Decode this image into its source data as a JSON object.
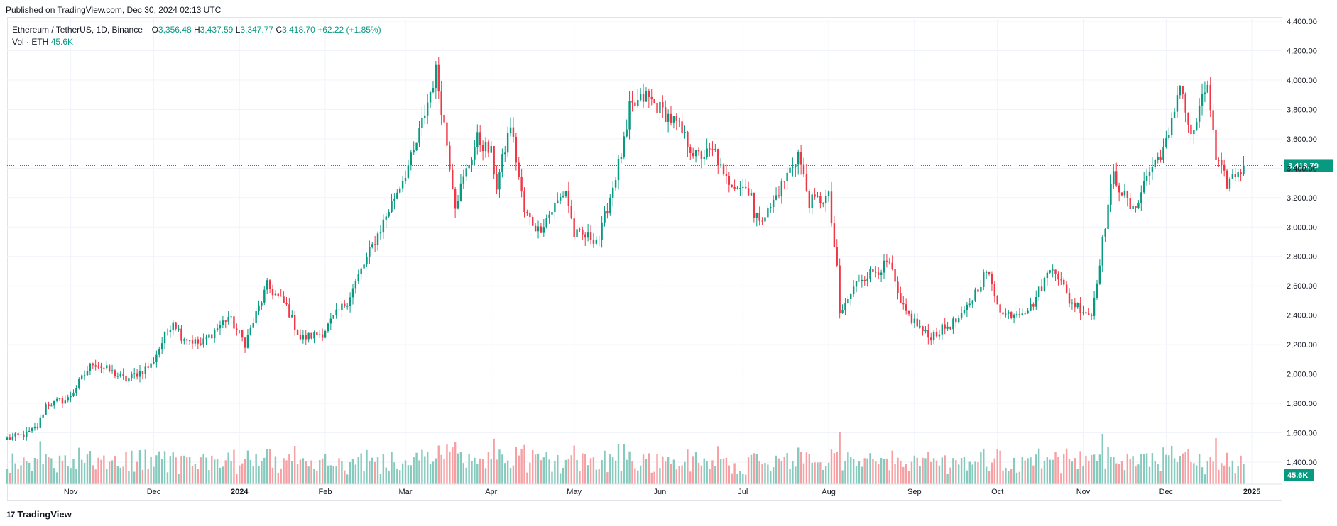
{
  "published": "Published on TradingView.com, Dec 30, 2024 02:13 UTC",
  "legend": {
    "symbol": "Ethereum / TetherUS, 1D, Binance",
    "open_key": "O",
    "open": "3,356.48",
    "high_key": "H",
    "high": "3,437.59",
    "low_key": "L",
    "low": "3,347.77",
    "close_key": "C",
    "close": "3,418.70",
    "change": "+62.22 (+1.85%)",
    "vol_label": "Vol · ETH",
    "vol_value": "45.6K"
  },
  "last_price_label": "3,418.70",
  "vol_badge": "45.6K",
  "logo": {
    "mark": "17",
    "text": "TradingView"
  },
  "colors": {
    "up": "#089981",
    "down": "#f23645",
    "vol_up": "#86cabd",
    "vol_down": "#f7a0a4",
    "grid": "#f0f3fa",
    "text": "#131722"
  },
  "chart_data": {
    "type": "candlestick",
    "y_axis_ticks": [
      "4,400.00",
      "4,200.00",
      "4,000.00",
      "3,800.00",
      "3,600.00",
      "3,400.00",
      "3,200.00",
      "3,000.00",
      "2,800.00",
      "2,600.00",
      "2,400.00",
      "2,200.00",
      "2,000.00",
      "1,800.00",
      "1,600.00",
      "1,400.00"
    ],
    "ylim": [
      1300,
      4450
    ],
    "x_axis_ticks": [
      "Nov",
      "Dec",
      "2024",
      "Feb",
      "Mar",
      "Apr",
      "May",
      "Jun",
      "Jul",
      "Aug",
      "Sep",
      "Oct",
      "Nov",
      "Dec",
      "2025"
    ],
    "x_tick_dates": [
      "2023-11-01",
      "2023-12-01",
      "2024-01-01",
      "2024-02-01",
      "2024-03-01",
      "2024-04-01",
      "2024-05-01",
      "2024-06-01",
      "2024-07-01",
      "2024-08-01",
      "2024-09-01",
      "2024-10-01",
      "2024-11-01",
      "2024-12-01",
      "2025-01-01"
    ],
    "x_range": [
      "2023-10-09",
      "2025-01-12"
    ],
    "last_price": 3418.7,
    "close_anchors": [
      [
        "2023-10-09",
        1560
      ],
      [
        "2023-10-16",
        1590
      ],
      [
        "2023-10-20",
        1640
      ],
      [
        "2023-10-23",
        1790
      ],
      [
        "2023-10-31",
        1830
      ],
      [
        "2023-11-09",
        2080
      ],
      [
        "2023-11-21",
        1960
      ],
      [
        "2023-11-30",
        2060
      ],
      [
        "2023-12-08",
        2370
      ],
      [
        "2023-12-11",
        2260
      ],
      [
        "2023-12-18",
        2200
      ],
      [
        "2023-12-28",
        2390
      ],
      [
        "2024-01-03",
        2210
      ],
      [
        "2024-01-11",
        2600
      ],
      [
        "2024-01-18",
        2460
      ],
      [
        "2024-01-23",
        2240
      ],
      [
        "2024-01-31",
        2280
      ],
      [
        "2024-02-09",
        2500
      ],
      [
        "2024-02-20",
        2950
      ],
      [
        "2024-03-04",
        3500
      ],
      [
        "2024-03-12",
        4060
      ],
      [
        "2024-03-15",
        3700
      ],
      [
        "2024-03-19",
        3160
      ],
      [
        "2024-03-27",
        3600
      ],
      [
        "2024-04-01",
        3500
      ],
      [
        "2024-04-03",
        3280
      ],
      [
        "2024-04-08",
        3700
      ],
      [
        "2024-04-13",
        3100
      ],
      [
        "2024-04-18",
        2980
      ],
      [
        "2024-04-28",
        3250
      ],
      [
        "2024-05-01",
        2950
      ],
      [
        "2024-05-10",
        2920
      ],
      [
        "2024-05-20",
        3640
      ],
      [
        "2024-05-21",
        3800
      ],
      [
        "2024-05-27",
        3890
      ],
      [
        "2024-06-07",
        3700
      ],
      [
        "2024-06-14",
        3480
      ],
      [
        "2024-06-21",
        3510
      ],
      [
        "2024-06-24",
        3330
      ],
      [
        "2024-07-04",
        3250
      ],
      [
        "2024-07-05",
        3050
      ],
      [
        "2024-07-10",
        3100
      ],
      [
        "2024-07-21",
        3500
      ],
      [
        "2024-07-25",
        3170
      ],
      [
        "2024-08-01",
        3200
      ],
      [
        "2024-08-04",
        2700
      ],
      [
        "2024-08-05",
        2400
      ],
      [
        "2024-08-12",
        2650
      ],
      [
        "2024-08-23",
        2750
      ],
      [
        "2024-08-27",
        2460
      ],
      [
        "2024-09-06",
        2250
      ],
      [
        "2024-09-18",
        2380
      ],
      [
        "2024-09-27",
        2700
      ],
      [
        "2024-10-03",
        2400
      ],
      [
        "2024-10-13",
        2450
      ],
      [
        "2024-10-21",
        2750
      ],
      [
        "2024-10-27",
        2500
      ],
      [
        "2024-11-04",
        2400
      ],
      [
        "2024-11-10",
        3150
      ],
      [
        "2024-11-12",
        3350
      ],
      [
        "2024-11-19",
        3100
      ],
      [
        "2024-11-24",
        3350
      ],
      [
        "2024-12-02",
        3600
      ],
      [
        "2024-12-06",
        4000
      ],
      [
        "2024-12-10",
        3600
      ],
      [
        "2024-12-16",
        3980
      ],
      [
        "2024-12-19",
        3450
      ],
      [
        "2024-12-23",
        3300
      ],
      [
        "2024-12-29",
        3418.7
      ]
    ]
  }
}
